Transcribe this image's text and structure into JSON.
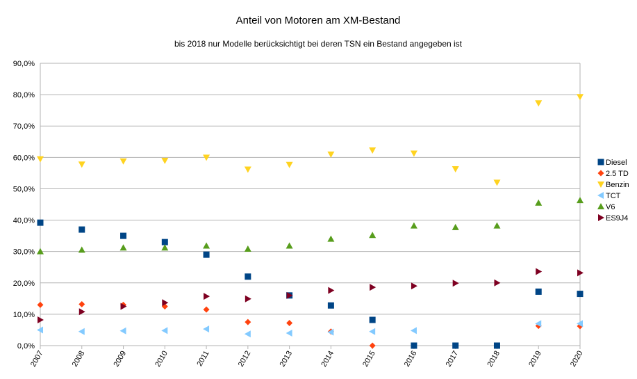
{
  "chart_data": {
    "type": "scatter",
    "title": "Anteil von Motoren am XM-Bestand",
    "subtitle": "bis 2018 nur Modelle berücksichtigt bei deren TSN ein Bestand angegeben ist",
    "x": [
      "2007",
      "2008",
      "2009",
      "2010",
      "2011",
      "2012",
      "2013",
      "2014",
      "2015",
      "2016",
      "2017",
      "2018",
      "2019",
      "2020"
    ],
    "ylim": [
      0,
      90
    ],
    "yticks": [
      "0,0%",
      "10,0%",
      "20,0%",
      "30,0%",
      "40,0%",
      "50,0%",
      "60,0%",
      "70,0%",
      "80,0%",
      "90,0%"
    ],
    "grid": true,
    "legend_position": "right",
    "series": [
      {
        "name": "Diesel",
        "marker": "square",
        "color": "#004586",
        "values": [
          39.2,
          37.0,
          35.0,
          33.0,
          29.0,
          22.0,
          16.0,
          12.8,
          8.2,
          0.0,
          0.0,
          0.0,
          17.2,
          16.5
        ]
      },
      {
        "name": "2.5 TD",
        "marker": "diamond",
        "color": "#ff420e",
        "values": [
          13.0,
          13.2,
          13.0,
          12.5,
          11.5,
          7.5,
          7.2,
          4.5,
          0.0,
          null,
          null,
          null,
          6.3,
          6.2
        ]
      },
      {
        "name": "Benzin",
        "marker": "triangle-down",
        "color": "#ffd320",
        "values": [
          59.5,
          57.8,
          58.8,
          59.0,
          60.0,
          56.2,
          57.7,
          61.0,
          62.3,
          61.3,
          56.3,
          52.0,
          77.3,
          79.3
        ]
      },
      {
        "name": "TCT",
        "marker": "triangle-left",
        "color": "#83caff",
        "values": [
          5.0,
          4.5,
          4.7,
          4.8,
          5.3,
          3.7,
          4.0,
          4.3,
          4.5,
          4.8,
          null,
          null,
          7.0,
          7.0
        ]
      },
      {
        "name": "V6",
        "marker": "triangle-up",
        "color": "#579d1c",
        "values": [
          30.0,
          30.5,
          31.2,
          31.2,
          31.8,
          30.8,
          31.8,
          34.0,
          35.2,
          38.2,
          37.7,
          38.2,
          45.5,
          46.3
        ]
      },
      {
        "name": "ES9J4",
        "marker": "triangle-right",
        "color": "#7e0021",
        "values": [
          8.2,
          10.8,
          12.5,
          13.7,
          15.7,
          14.9,
          16.0,
          17.6,
          18.6,
          19.0,
          19.9,
          20.0,
          23.6,
          23.2
        ]
      }
    ]
  }
}
